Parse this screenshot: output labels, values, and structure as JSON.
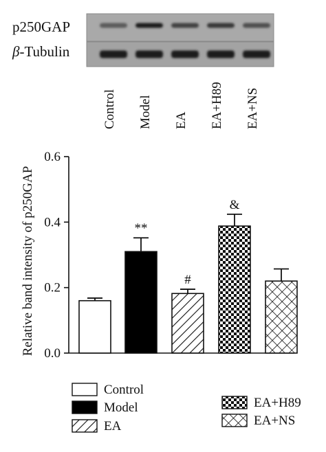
{
  "blot": {
    "rows": [
      {
        "label": "p250GAP",
        "italic_prefix": "",
        "intensities": [
          0.45,
          0.95,
          0.65,
          0.72,
          0.55
        ]
      },
      {
        "label": "-Tubulin",
        "italic_prefix": "β",
        "intensities": [
          0.95,
          0.95,
          0.95,
          0.95,
          0.95
        ]
      }
    ],
    "lanes": [
      "Control",
      "Model",
      "EA",
      "EA+H89",
      "EA+NS"
    ]
  },
  "chart_data": {
    "type": "bar",
    "categories": [
      "Control",
      "Model",
      "EA",
      "EA+H89",
      "EA+NS"
    ],
    "values": [
      0.16,
      0.31,
      0.182,
      0.388,
      0.22
    ],
    "errors": [
      0.008,
      0.042,
      0.013,
      0.036,
      0.037
    ],
    "significance": [
      "",
      "**",
      "#",
      "&",
      ""
    ],
    "patterns": [
      "empty",
      "solid",
      "diagonal",
      "checker",
      "crosshatch"
    ],
    "ylabel": "Relative band intensity of p250GAP",
    "ylim": [
      0,
      0.6
    ],
    "yticks": [
      "0.0",
      "0.2",
      "0.4",
      "0.6"
    ],
    "grid": false,
    "legend": {
      "position": "bottom",
      "entries": [
        "Control",
        "Model",
        "EA",
        "EA+H89",
        "EA+NS"
      ]
    }
  }
}
